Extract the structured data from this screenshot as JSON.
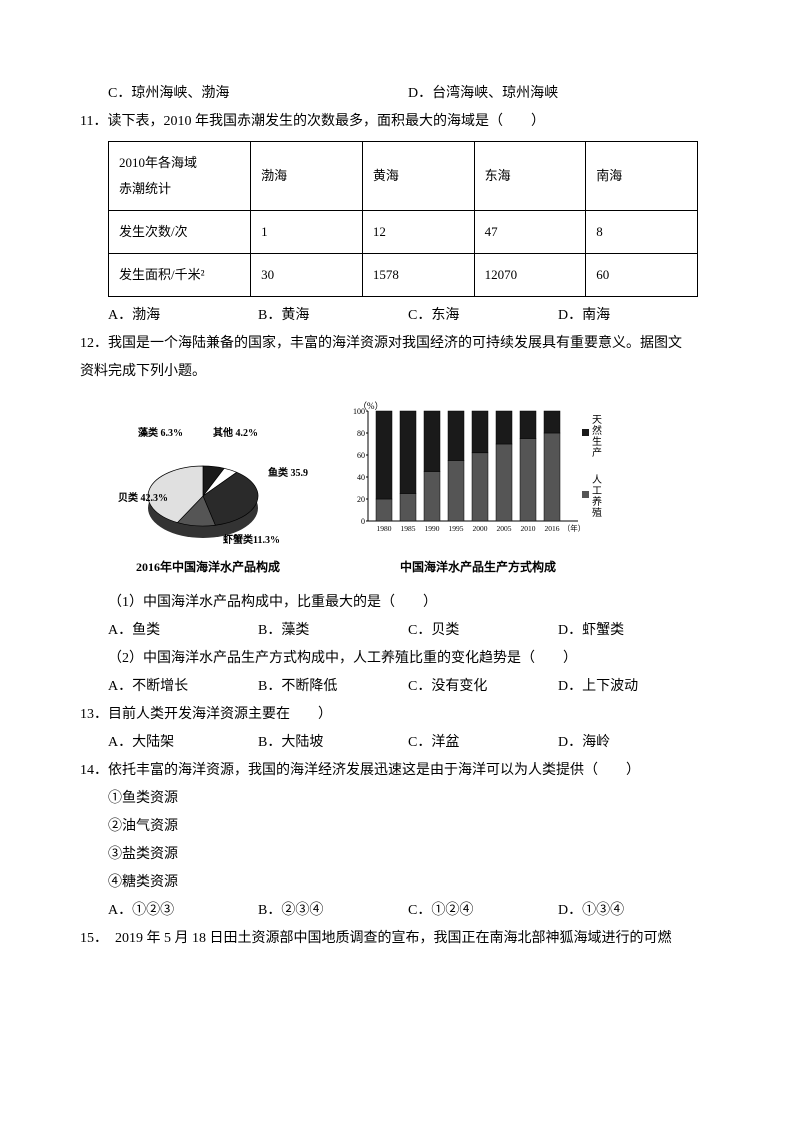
{
  "q10": {
    "optC": "C．琼州海峡、渤海",
    "optD": "D．台湾海峡、琼州海峡"
  },
  "q11": {
    "stem": "11．读下表，2010 年我国赤潮发生的次数最多，面积最大的海域是（　　）",
    "table": {
      "header": {
        "c0": "2010年各海域\n赤潮统计",
        "c1": "渤海",
        "c2": "黄海",
        "c3": "东海",
        "c4": "南海"
      },
      "row1": {
        "c0": "发生次数/次",
        "c1": "1",
        "c2": "12",
        "c3": "47",
        "c4": "8"
      },
      "row2": {
        "c0": "发生面积/千米²",
        "c1": "30",
        "c2": "1578",
        "c3": "12070",
        "c4": "60"
      }
    },
    "optA": "A．渤海",
    "optB": "B．黄海",
    "optC": "C．东海",
    "optD": "D．南海"
  },
  "q12": {
    "stem1": "12．我国是一个海陆兼备的国家，丰富的海洋资源对我国经济的可持续发展具有重要意义。据图文",
    "stem2": "资料完成下列小题。",
    "pie": {
      "caption": "2016年中国海洋水产品构成",
      "slices": [
        {
          "label": "藻类 6.3%",
          "value": 6.3,
          "color": "#1a1a1a"
        },
        {
          "label": "其他 4.2%",
          "value": 4.2,
          "color": "#ffffff"
        },
        {
          "label": "鱼类 35.9%",
          "value": 35.9,
          "color": "#2a2a2a"
        },
        {
          "label": "虾蟹类11.3%",
          "value": 11.3,
          "color": "#555555"
        },
        {
          "label": "贝类 42.3%",
          "value": 42.3,
          "color": "#e0e0e0"
        }
      ]
    },
    "bar": {
      "caption": "中国海洋水产品生产方式构成",
      "ylabel": "（%）",
      "side1": "天然生产",
      "side2": "人工养殖",
      "years": [
        "1980",
        "1985",
        "1990",
        "1995",
        "2000",
        "2005",
        "2010",
        "2016",
        "（年）"
      ],
      "natural": [
        80,
        75,
        55,
        45,
        38,
        30,
        25,
        20
      ],
      "artificial": [
        20,
        25,
        45,
        55,
        62,
        70,
        75,
        80
      ],
      "natural_color": "#1a1a1a",
      "artificial_color": "#555555",
      "ylim": [
        0,
        100
      ],
      "ytick_step": 20
    },
    "sub1": {
      "stem": "（1）中国海洋水产品构成中，比重最大的是（　　）",
      "optA": "A．鱼类",
      "optB": "B．藻类",
      "optC": "C．贝类",
      "optD": "D．虾蟹类"
    },
    "sub2": {
      "stem": "（2）中国海洋水产品生产方式构成中，人工养殖比重的变化趋势是（　　）",
      "optA": "A．不断增长",
      "optB": "B．不断降低",
      "optC": "C．没有变化",
      "optD": "D．上下波动"
    }
  },
  "q13": {
    "stem": "13．目前人类开发海洋资源主要在　　）",
    "optA": "A．大陆架",
    "optB": "B．大陆坡",
    "optC": "C．洋盆",
    "optD": "D．海岭"
  },
  "q14": {
    "stem": "14．依托丰富的海洋资源，我国的海洋经济发展迅速这是由于海洋可以为人类提供（　　）",
    "li1": "①鱼类资源",
    "li2": "②油气资源",
    "li3": "③盐类资源",
    "li4": "④糖类资源",
    "optA": "A．①②③",
    "optB": "B．②③④",
    "optC": "C．①②④",
    "optD": "D．①③④"
  },
  "q15": {
    "stem": "15．　2019 年 5 月 18 日田土资源部中国地质调查的宣布，我国正在南海北部神狐海域进行的可燃"
  }
}
